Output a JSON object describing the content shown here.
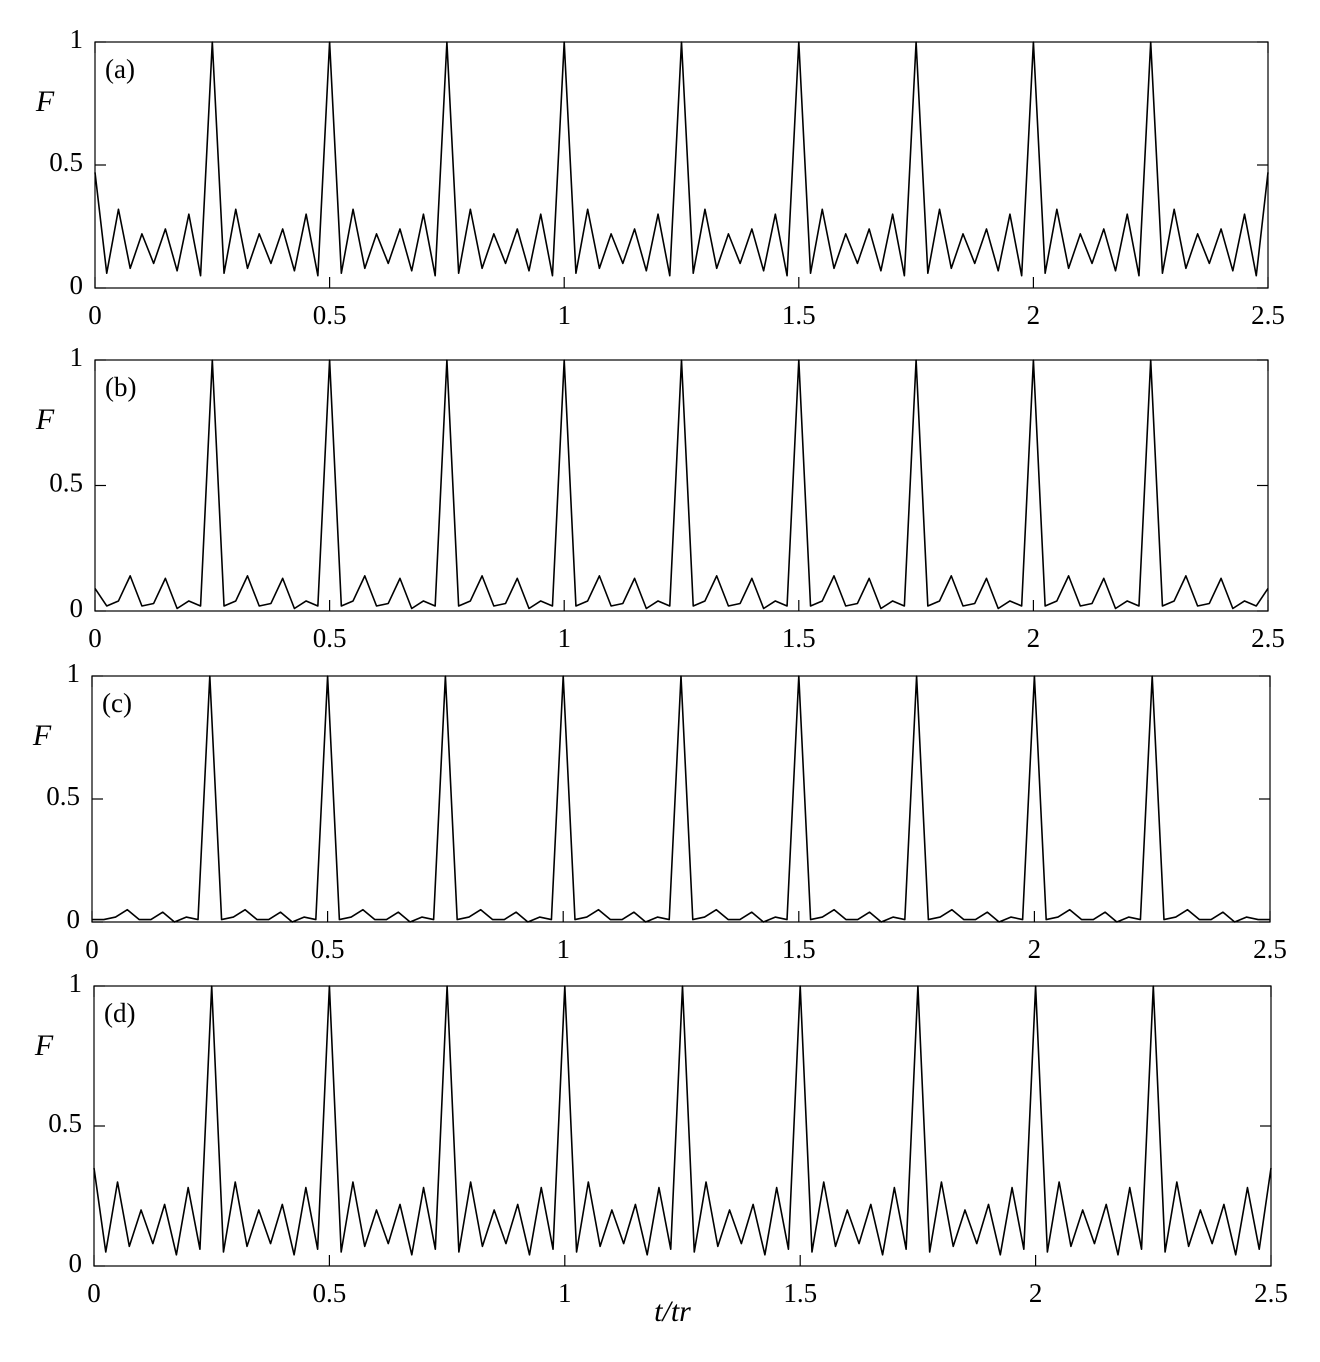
{
  "chart_data": [
    {
      "type": "line",
      "annotation": "(a)",
      "ylabel": "F",
      "xlim": [
        0,
        2.5
      ],
      "ylim": [
        0,
        1
      ],
      "xticks": [
        0,
        0.5,
        1,
        1.5,
        2,
        2.5
      ],
      "yticks": [
        0,
        0.5,
        1
      ],
      "color": "#000000",
      "x": [
        0,
        0.025,
        0.05,
        0.075,
        0.1,
        0.125,
        0.15,
        0.175,
        0.2,
        0.225,
        0.25,
        0.275,
        0.3,
        0.325,
        0.35,
        0.375,
        0.4,
        0.425,
        0.45,
        0.475,
        0.5,
        0.525,
        0.55,
        0.575,
        0.6,
        0.625,
        0.65,
        0.675,
        0.7,
        0.725,
        0.75,
        0.775,
        0.8,
        0.825,
        0.85,
        0.875,
        0.9,
        0.925,
        0.95,
        0.975,
        1,
        1.025,
        1.05,
        1.075,
        1.1,
        1.125,
        1.15,
        1.175,
        1.2,
        1.225,
        1.25,
        1.275,
        1.3,
        1.325,
        1.35,
        1.375,
        1.4,
        1.425,
        1.45,
        1.475,
        1.5,
        1.525,
        1.55,
        1.575,
        1.6,
        1.625,
        1.65,
        1.675,
        1.7,
        1.725,
        1.75,
        1.775,
        1.8,
        1.825,
        1.85,
        1.875,
        1.9,
        1.925,
        1.95,
        1.975,
        2,
        2.025,
        2.05,
        2.075,
        2.1,
        2.125,
        2.15,
        2.175,
        2.2,
        2.225,
        2.25,
        2.275,
        2.3,
        2.325,
        2.35,
        2.375,
        2.4,
        2.425,
        2.45,
        2.475,
        2.5
      ],
      "values": [
        0.47,
        0.06,
        0.32,
        0.08,
        0.22,
        0.1,
        0.24,
        0.07,
        0.3,
        0.05,
        1,
        0.06,
        0.32,
        0.08,
        0.22,
        0.1,
        0.24,
        0.07,
        0.3,
        0.05,
        1,
        0.06,
        0.32,
        0.08,
        0.22,
        0.1,
        0.24,
        0.07,
        0.3,
        0.05,
        1,
        0.06,
        0.32,
        0.08,
        0.22,
        0.1,
        0.24,
        0.07,
        0.3,
        0.05,
        1,
        0.06,
        0.32,
        0.08,
        0.22,
        0.1,
        0.24,
        0.07,
        0.3,
        0.05,
        1,
        0.06,
        0.32,
        0.08,
        0.22,
        0.1,
        0.24,
        0.07,
        0.3,
        0.05,
        1,
        0.06,
        0.32,
        0.08,
        0.22,
        0.1,
        0.24,
        0.07,
        0.3,
        0.05,
        1,
        0.06,
        0.32,
        0.08,
        0.22,
        0.1,
        0.24,
        0.07,
        0.3,
        0.05,
        1,
        0.06,
        0.32,
        0.08,
        0.22,
        0.1,
        0.24,
        0.07,
        0.3,
        0.05,
        1,
        0.06,
        0.32,
        0.08,
        0.22,
        0.1,
        0.24,
        0.07,
        0.3,
        0.05,
        0.47
      ]
    },
    {
      "type": "line",
      "annotation": "(b)",
      "ylabel": "F",
      "xlim": [
        0,
        2.5
      ],
      "ylim": [
        0,
        1
      ],
      "xticks": [
        0,
        0.5,
        1,
        1.5,
        2,
        2.5
      ],
      "yticks": [
        0,
        0.5,
        1
      ],
      "color": "#000000",
      "x": [
        0,
        0.025,
        0.05,
        0.075,
        0.1,
        0.125,
        0.15,
        0.175,
        0.2,
        0.225,
        0.25,
        0.275,
        0.3,
        0.325,
        0.35,
        0.375,
        0.4,
        0.425,
        0.45,
        0.475,
        0.5,
        0.525,
        0.55,
        0.575,
        0.6,
        0.625,
        0.65,
        0.675,
        0.7,
        0.725,
        0.75,
        0.775,
        0.8,
        0.825,
        0.85,
        0.875,
        0.9,
        0.925,
        0.95,
        0.975,
        1,
        1.025,
        1.05,
        1.075,
        1.1,
        1.125,
        1.15,
        1.175,
        1.2,
        1.225,
        1.25,
        1.275,
        1.3,
        1.325,
        1.35,
        1.375,
        1.4,
        1.425,
        1.45,
        1.475,
        1.5,
        1.525,
        1.55,
        1.575,
        1.6,
        1.625,
        1.65,
        1.675,
        1.7,
        1.725,
        1.75,
        1.775,
        1.8,
        1.825,
        1.85,
        1.875,
        1.9,
        1.925,
        1.95,
        1.975,
        2,
        2.025,
        2.05,
        2.075,
        2.1,
        2.125,
        2.15,
        2.175,
        2.2,
        2.225,
        2.25,
        2.275,
        2.3,
        2.325,
        2.35,
        2.375,
        2.4,
        2.425,
        2.45,
        2.475,
        2.5
      ],
      "values": [
        0.09,
        0.02,
        0.04,
        0.14,
        0.02,
        0.03,
        0.13,
        0.01,
        0.04,
        0.02,
        1,
        0.02,
        0.04,
        0.14,
        0.02,
        0.03,
        0.13,
        0.01,
        0.04,
        0.02,
        1,
        0.02,
        0.04,
        0.14,
        0.02,
        0.03,
        0.13,
        0.01,
        0.04,
        0.02,
        1,
        0.02,
        0.04,
        0.14,
        0.02,
        0.03,
        0.13,
        0.01,
        0.04,
        0.02,
        1,
        0.02,
        0.04,
        0.14,
        0.02,
        0.03,
        0.13,
        0.01,
        0.04,
        0.02,
        1,
        0.02,
        0.04,
        0.14,
        0.02,
        0.03,
        0.13,
        0.01,
        0.04,
        0.02,
        1,
        0.02,
        0.04,
        0.14,
        0.02,
        0.03,
        0.13,
        0.01,
        0.04,
        0.02,
        1,
        0.02,
        0.04,
        0.14,
        0.02,
        0.03,
        0.13,
        0.01,
        0.04,
        0.02,
        1,
        0.02,
        0.04,
        0.14,
        0.02,
        0.03,
        0.13,
        0.01,
        0.04,
        0.02,
        1,
        0.02,
        0.04,
        0.14,
        0.02,
        0.03,
        0.13,
        0.01,
        0.04,
        0.02,
        0.09
      ]
    },
    {
      "type": "line",
      "annotation": "(c)",
      "ylabel": "F",
      "xlim": [
        0,
        2.5
      ],
      "ylim": [
        0,
        1
      ],
      "xticks": [
        0,
        0.5,
        1,
        1.5,
        2,
        2.5
      ],
      "yticks": [
        0,
        0.5,
        1
      ],
      "color": "#000000",
      "x": [
        0,
        0.025,
        0.05,
        0.075,
        0.1,
        0.125,
        0.15,
        0.175,
        0.2,
        0.225,
        0.25,
        0.275,
        0.3,
        0.325,
        0.35,
        0.375,
        0.4,
        0.425,
        0.45,
        0.475,
        0.5,
        0.525,
        0.55,
        0.575,
        0.6,
        0.625,
        0.65,
        0.675,
        0.7,
        0.725,
        0.75,
        0.775,
        0.8,
        0.825,
        0.85,
        0.875,
        0.9,
        0.925,
        0.95,
        0.975,
        1,
        1.025,
        1.05,
        1.075,
        1.1,
        1.125,
        1.15,
        1.175,
        1.2,
        1.225,
        1.25,
        1.275,
        1.3,
        1.325,
        1.35,
        1.375,
        1.4,
        1.425,
        1.45,
        1.475,
        1.5,
        1.525,
        1.55,
        1.575,
        1.6,
        1.625,
        1.65,
        1.675,
        1.7,
        1.725,
        1.75,
        1.775,
        1.8,
        1.825,
        1.85,
        1.875,
        1.9,
        1.925,
        1.95,
        1.975,
        2,
        2.025,
        2.05,
        2.075,
        2.1,
        2.125,
        2.15,
        2.175,
        2.2,
        2.225,
        2.25,
        2.275,
        2.3,
        2.325,
        2.35,
        2.375,
        2.4,
        2.425,
        2.45,
        2.475,
        2.5
      ],
      "values": [
        0.01,
        0.01,
        0.02,
        0.05,
        0.01,
        0.01,
        0.04,
        0,
        0.02,
        0.01,
        1,
        0.01,
        0.02,
        0.05,
        0.01,
        0.01,
        0.04,
        0,
        0.02,
        0.01,
        1,
        0.01,
        0.02,
        0.05,
        0.01,
        0.01,
        0.04,
        0,
        0.02,
        0.01,
        1,
        0.01,
        0.02,
        0.05,
        0.01,
        0.01,
        0.04,
        0,
        0.02,
        0.01,
        1,
        0.01,
        0.02,
        0.05,
        0.01,
        0.01,
        0.04,
        0,
        0.02,
        0.01,
        1,
        0.01,
        0.02,
        0.05,
        0.01,
        0.01,
        0.04,
        0,
        0.02,
        0.01,
        1,
        0.01,
        0.02,
        0.05,
        0.01,
        0.01,
        0.04,
        0,
        0.02,
        0.01,
        1,
        0.01,
        0.02,
        0.05,
        0.01,
        0.01,
        0.04,
        0,
        0.02,
        0.01,
        1,
        0.01,
        0.02,
        0.05,
        0.01,
        0.01,
        0.04,
        0,
        0.02,
        0.01,
        1,
        0.01,
        0.02,
        0.05,
        0.01,
        0.01,
        0.04,
        0,
        0.02,
        0.01,
        0.01
      ]
    },
    {
      "type": "line",
      "annotation": "(d)",
      "ylabel": "F",
      "xlabel": "t/tr",
      "xlim": [
        0,
        2.5
      ],
      "ylim": [
        0,
        1
      ],
      "xticks": [
        0,
        0.5,
        1,
        1.5,
        2,
        2.5
      ],
      "yticks": [
        0,
        0.5,
        1
      ],
      "color": "#000000",
      "x": [
        0,
        0.025,
        0.05,
        0.075,
        0.1,
        0.125,
        0.15,
        0.175,
        0.2,
        0.225,
        0.25,
        0.275,
        0.3,
        0.325,
        0.35,
        0.375,
        0.4,
        0.425,
        0.45,
        0.475,
        0.5,
        0.525,
        0.55,
        0.575,
        0.6,
        0.625,
        0.65,
        0.675,
        0.7,
        0.725,
        0.75,
        0.775,
        0.8,
        0.825,
        0.85,
        0.875,
        0.9,
        0.925,
        0.95,
        0.975,
        1,
        1.025,
        1.05,
        1.075,
        1.1,
        1.125,
        1.15,
        1.175,
        1.2,
        1.225,
        1.25,
        1.275,
        1.3,
        1.325,
        1.35,
        1.375,
        1.4,
        1.425,
        1.45,
        1.475,
        1.5,
        1.525,
        1.55,
        1.575,
        1.6,
        1.625,
        1.65,
        1.675,
        1.7,
        1.725,
        1.75,
        1.775,
        1.8,
        1.825,
        1.85,
        1.875,
        1.9,
        1.925,
        1.95,
        1.975,
        2,
        2.025,
        2.05,
        2.075,
        2.1,
        2.125,
        2.15,
        2.175,
        2.2,
        2.225,
        2.25,
        2.275,
        2.3,
        2.325,
        2.35,
        2.375,
        2.4,
        2.425,
        2.45,
        2.475,
        2.5
      ],
      "values": [
        0.35,
        0.05,
        0.3,
        0.07,
        0.2,
        0.08,
        0.22,
        0.04,
        0.28,
        0.06,
        1,
        0.05,
        0.3,
        0.07,
        0.2,
        0.08,
        0.22,
        0.04,
        0.28,
        0.06,
        1,
        0.05,
        0.3,
        0.07,
        0.2,
        0.08,
        0.22,
        0.04,
        0.28,
        0.06,
        1,
        0.05,
        0.3,
        0.07,
        0.2,
        0.08,
        0.22,
        0.04,
        0.28,
        0.06,
        1,
        0.05,
        0.3,
        0.07,
        0.2,
        0.08,
        0.22,
        0.04,
        0.28,
        0.06,
        1,
        0.05,
        0.3,
        0.07,
        0.2,
        0.08,
        0.22,
        0.04,
        0.28,
        0.06,
        1,
        0.05,
        0.3,
        0.07,
        0.2,
        0.08,
        0.22,
        0.04,
        0.28,
        0.06,
        1,
        0.05,
        0.3,
        0.07,
        0.2,
        0.08,
        0.22,
        0.04,
        0.28,
        0.06,
        1,
        0.05,
        0.3,
        0.07,
        0.2,
        0.08,
        0.22,
        0.04,
        0.28,
        0.06,
        1,
        0.05,
        0.3,
        0.07,
        0.2,
        0.08,
        0.22,
        0.04,
        0.28,
        0.06,
        0.35
      ]
    }
  ]
}
